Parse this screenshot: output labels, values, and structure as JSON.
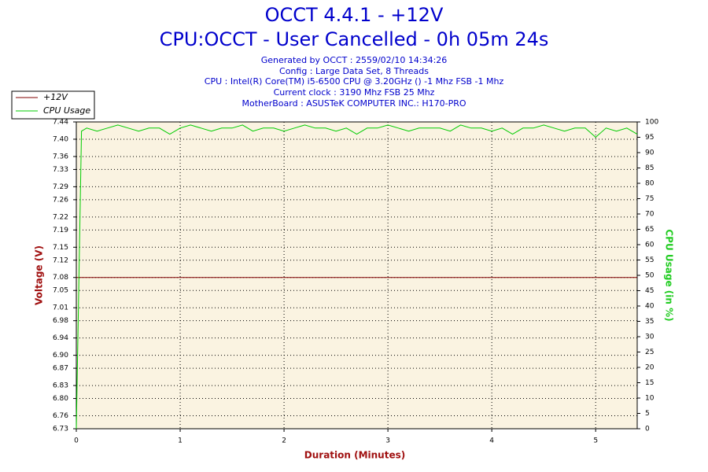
{
  "chart_data": {
    "type": "line",
    "title": "OCCT 4.4.1 - +12V",
    "subtitle": "CPU:OCCT - User Cancelled - 0h 05m 24s",
    "info": [
      "Generated by OCCT : 2559/02/10 14:34:26",
      "Config : Large Data Set, 8 Threads",
      "CPU : Intel(R) Core(TM) i5-6500 CPU @ 3.20GHz () -1 Mhz FSB -1 Mhz",
      "Current clock : 3190 Mhz FSB 25 Mhz",
      "MotherBoard : ASUSTeK COMPUTER INC.: H170-PRO"
    ],
    "xlabel": "Duration (Minutes)",
    "ylabel": "Voltage (V)",
    "y2label": "CPU Usage (in %)",
    "xlim": [
      0,
      5.4
    ],
    "xticks": [
      0,
      1,
      2,
      3,
      4,
      5
    ],
    "ylim": [
      6.73,
      7.44
    ],
    "yticks": [
      6.73,
      6.76,
      {
        "value": 6.8,
        "label": "6.80"
      },
      6.83,
      6.87,
      {
        "value": 6.9,
        "label": "6.90"
      },
      6.94,
      6.98,
      7.01,
      7.05,
      7.08,
      7.12,
      7.15,
      7.19,
      7.22,
      7.26,
      7.29,
      7.33,
      7.36,
      {
        "value": 7.4,
        "label": "7.40"
      },
      7.44
    ],
    "y2lim": [
      0,
      100
    ],
    "y2ticks": [
      0,
      5,
      10,
      15,
      20,
      25,
      30,
      35,
      40,
      45,
      50,
      55,
      60,
      65,
      70,
      75,
      80,
      85,
      90,
      95,
      100
    ],
    "grid": true,
    "legend": "top-left",
    "x": [
      0,
      0.05,
      0.1,
      0.2,
      0.3,
      0.4,
      0.5,
      0.6,
      0.7,
      0.8,
      0.9,
      1.0,
      1.1,
      1.2,
      1.3,
      1.4,
      1.5,
      1.6,
      1.7,
      1.8,
      1.9,
      2.0,
      2.1,
      2.2,
      2.3,
      2.4,
      2.5,
      2.6,
      2.7,
      2.8,
      2.9,
      3.0,
      3.1,
      3.2,
      3.3,
      3.4,
      3.5,
      3.6,
      3.7,
      3.8,
      3.9,
      4.0,
      4.1,
      4.2,
      4.3,
      4.4,
      4.5,
      4.6,
      4.7,
      4.8,
      4.9,
      5.0,
      5.1,
      5.2,
      5.3,
      5.4
    ],
    "series": [
      {
        "name": "+12V",
        "color": "#800000",
        "axis": "y",
        "values": [
          7.08,
          7.08,
          7.08,
          7.08,
          7.08,
          7.08,
          7.08,
          7.08,
          7.08,
          7.08,
          7.08,
          7.08,
          7.08,
          7.08,
          7.08,
          7.08,
          7.08,
          7.08,
          7.08,
          7.08,
          7.08,
          7.08,
          7.08,
          7.08,
          7.08,
          7.08,
          7.08,
          7.08,
          7.08,
          7.08,
          7.08,
          7.08,
          7.08,
          7.08,
          7.08,
          7.08,
          7.08,
          7.08,
          7.08,
          7.08,
          7.08,
          7.08,
          7.08,
          7.08,
          7.08,
          7.08,
          7.08,
          7.08,
          7.08,
          7.08,
          7.08,
          7.08,
          7.08,
          7.08,
          7.08,
          7.08
        ]
      },
      {
        "name": "CPU Usage",
        "color": "#00cc00",
        "axis": "y2",
        "values": [
          0,
          97,
          98,
          97,
          98,
          99,
          98,
          97,
          98,
          98,
          96,
          98,
          99,
          98,
          97,
          98,
          98,
          99,
          97,
          98,
          98,
          97,
          98,
          99,
          98,
          98,
          97,
          98,
          96,
          98,
          98,
          99,
          98,
          97,
          98,
          98,
          98,
          97,
          99,
          98,
          98,
          97,
          98,
          96,
          98,
          98,
          99,
          98,
          97,
          98,
          98,
          95,
          98,
          97,
          98,
          96
        ]
      }
    ]
  }
}
